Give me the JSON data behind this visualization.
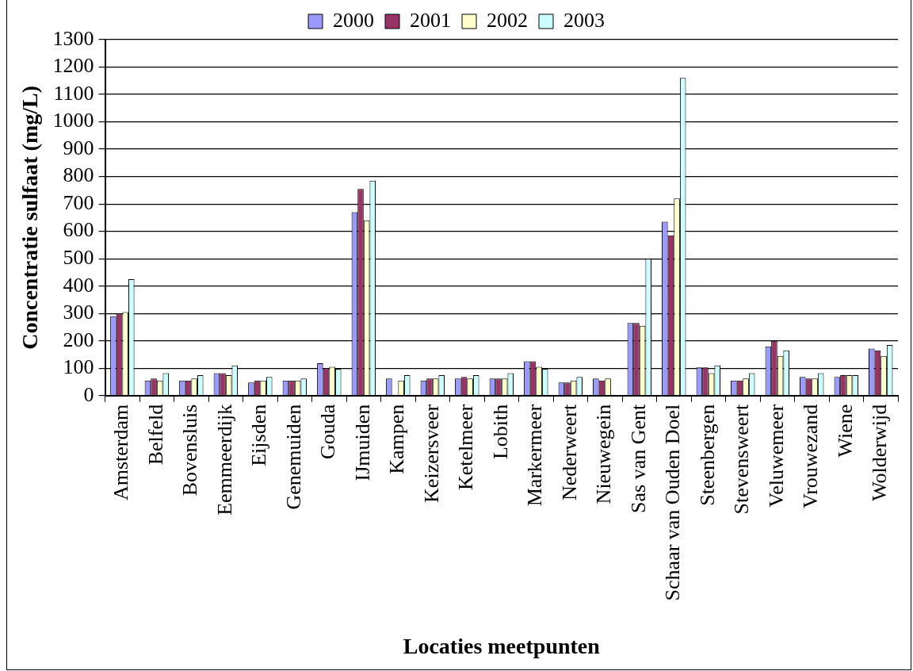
{
  "chart_data": {
    "type": "bar",
    "xlabel": "Locaties meetpunten",
    "ylabel": "Concentratie sulfaat (mg/L)",
    "categories": [
      "Amsterdam",
      "Belfeld",
      "Bovensluis",
      "Eemmeerdijk",
      "Eijsden",
      "Genemuiden",
      "Gouda",
      "IJmuiden",
      "Kampen",
      "Keizersveer",
      "Ketelmeer",
      "Lobith",
      "Markermeer",
      "Nederweert",
      "Nieuwegein",
      "Sas van Gent",
      "Schaar van Ouden Doel",
      "Steenbergen",
      "Stevensweert",
      "Veluwemeer",
      "Vrouwezand",
      "Wiene",
      "Wolderwijd"
    ],
    "series": [
      {
        "name": "2000",
        "color": "#9999ff",
        "values": [
          290,
          55,
          55,
          82,
          48,
          55,
          118,
          670,
          62,
          55,
          62,
          62,
          125,
          48,
          62,
          265,
          635,
          103,
          55,
          180,
          68,
          68,
          172
        ]
      },
      {
        "name": "2001",
        "color": "#993366",
        "values": [
          300,
          62,
          55,
          82,
          55,
          55,
          100,
          755,
          null,
          62,
          68,
          62,
          125,
          48,
          55,
          265,
          585,
          103,
          55,
          200,
          62,
          75,
          165
        ]
      },
      {
        "name": "2002",
        "color": "#ffffcc",
        "values": [
          305,
          55,
          62,
          75,
          55,
          55,
          105,
          640,
          55,
          62,
          62,
          62,
          105,
          55,
          62,
          255,
          720,
          82,
          62,
          145,
          62,
          75,
          145
        ]
      },
      {
        "name": "2003",
        "color": "#ccffff",
        "values": [
          425,
          82,
          75,
          110,
          68,
          62,
          98,
          785,
          75,
          75,
          75,
          82,
          98,
          68,
          null,
          500,
          1160,
          110,
          82,
          165,
          82,
          75,
          185
        ]
      }
    ],
    "ylim": [
      0,
      1300
    ],
    "yticks": [
      0,
      100,
      200,
      300,
      400,
      500,
      600,
      700,
      800,
      900,
      1000,
      1100,
      1200,
      1300
    ],
    "grid": "y",
    "legend": "top"
  }
}
